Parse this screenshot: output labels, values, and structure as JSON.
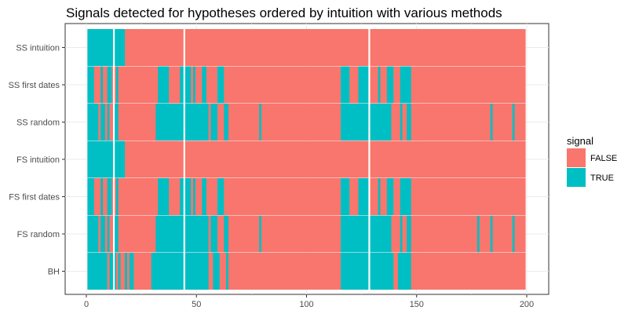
{
  "chart_data": {
    "type": "heatmap",
    "title": "Signals detected for hypotheses ordered by intuition with various methods",
    "xlabel": "",
    "ylabel": "",
    "xlim": [
      0,
      200
    ],
    "x_ticks": [
      0,
      50,
      100,
      150,
      200
    ],
    "grid": true,
    "legend_placement": "right",
    "legend": {
      "title": "signal",
      "entries": [
        {
          "label": "FALSE",
          "color": "#F8766D"
        },
        {
          "label": "TRUE",
          "color": "#00BFC4"
        }
      ]
    },
    "rows": [
      "SS intuition",
      "SS first dates",
      "SS random",
      "FS intuition",
      "FS first dates",
      "FS random",
      "BH"
    ],
    "series": [
      {
        "row": "SS intuition",
        "true_intervals": [
          [
            1,
            18
          ]
        ]
      },
      {
        "row": "SS first dates",
        "true_intervals": [
          [
            1,
            4
          ],
          [
            7,
            8
          ],
          [
            10,
            12
          ],
          [
            14,
            15
          ],
          [
            33,
            38
          ],
          [
            43,
            48
          ],
          [
            49,
            50
          ],
          [
            53,
            55
          ],
          [
            60,
            63
          ],
          [
            116,
            120
          ],
          [
            124,
            129
          ],
          [
            133,
            134
          ],
          [
            137,
            140
          ],
          [
            143,
            148
          ]
        ]
      },
      {
        "row": "SS random",
        "true_intervals": [
          [
            1,
            6
          ],
          [
            7,
            9
          ],
          [
            10,
            11
          ],
          [
            13,
            15
          ],
          [
            32,
            56
          ],
          [
            57,
            60
          ],
          [
            63,
            65
          ],
          [
            79,
            80
          ],
          [
            116,
            139
          ],
          [
            143,
            144
          ],
          [
            146,
            148
          ],
          [
            184,
            185
          ],
          [
            194,
            195
          ]
        ]
      },
      {
        "row": "FS intuition",
        "true_intervals": [
          [
            1,
            18
          ]
        ]
      },
      {
        "row": "FS first dates",
        "true_intervals": [
          [
            1,
            4
          ],
          [
            7,
            8
          ],
          [
            10,
            12
          ],
          [
            14,
            15
          ],
          [
            33,
            38
          ],
          [
            43,
            48
          ],
          [
            49,
            50
          ],
          [
            53,
            55
          ],
          [
            60,
            63
          ],
          [
            116,
            120
          ],
          [
            124,
            129
          ],
          [
            133,
            134
          ],
          [
            137,
            140
          ],
          [
            143,
            148
          ]
        ]
      },
      {
        "row": "FS random",
        "true_intervals": [
          [
            1,
            6
          ],
          [
            7,
            9
          ],
          [
            10,
            11
          ],
          [
            13,
            15
          ],
          [
            32,
            56
          ],
          [
            57,
            60
          ],
          [
            63,
            65
          ],
          [
            79,
            80
          ],
          [
            116,
            139
          ],
          [
            143,
            144
          ],
          [
            146,
            148
          ],
          [
            178,
            179
          ],
          [
            184,
            185
          ],
          [
            194,
            195
          ]
        ]
      },
      {
        "row": "BH",
        "true_intervals": [
          [
            1,
            10
          ],
          [
            11,
            14
          ],
          [
            15,
            16
          ],
          [
            18,
            19
          ],
          [
            20,
            22
          ],
          [
            30,
            56
          ],
          [
            58,
            61
          ],
          [
            64,
            65
          ],
          [
            116,
            140
          ],
          [
            142,
            148
          ]
        ]
      }
    ],
    "vertical_lines": [
      12.5,
      44.5,
      128.5
    ]
  }
}
